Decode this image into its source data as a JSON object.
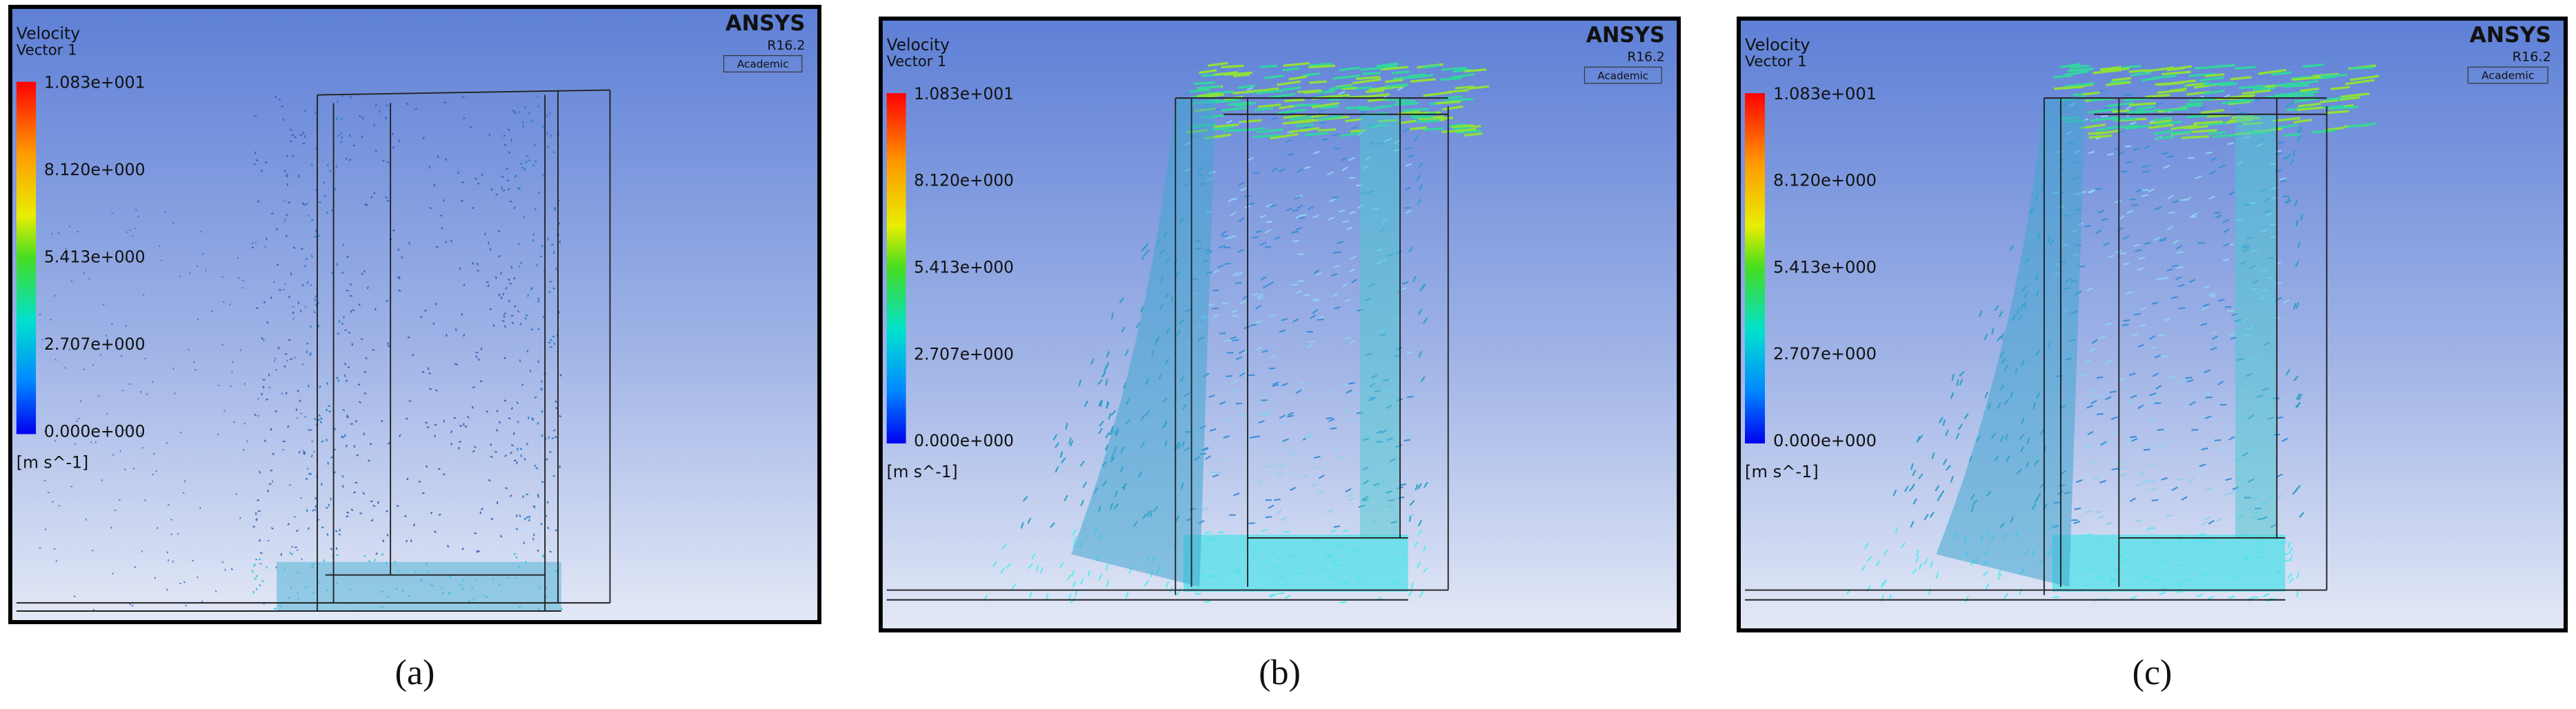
{
  "panels": [
    {
      "legend": {
        "title": "Velocity",
        "subtitle": "Vector 1",
        "ticks": [
          "1.083e+001",
          "8.120e+000",
          "5.413e+000",
          "2.707e+000",
          "0.000e+000"
        ],
        "unit": "[m s^-1]"
      },
      "brand": "ANSYS",
      "version": "R16.2",
      "license": "Academic",
      "caption": "(a)"
    },
    {
      "legend": {
        "title": "Velocity",
        "subtitle": "Vector 1",
        "ticks": [
          "1.083e+001",
          "8.120e+000",
          "5.413e+000",
          "2.707e+000",
          "0.000e+000"
        ],
        "unit": "[m s^-1]"
      },
      "brand": "ANSYS",
      "version": "R16.2",
      "license": "Academic",
      "caption": "(b)"
    },
    {
      "legend": {
        "title": "Velocity",
        "subtitle": "Vector 1",
        "ticks": [
          "1.083e+001",
          "8.120e+000",
          "5.413e+000",
          "2.707e+000",
          "0.000e+000"
        ],
        "unit": "[m s^-1]"
      },
      "brand": "ANSYS",
      "version": "R16.2",
      "license": "Academic",
      "caption": "(c)"
    }
  ]
}
